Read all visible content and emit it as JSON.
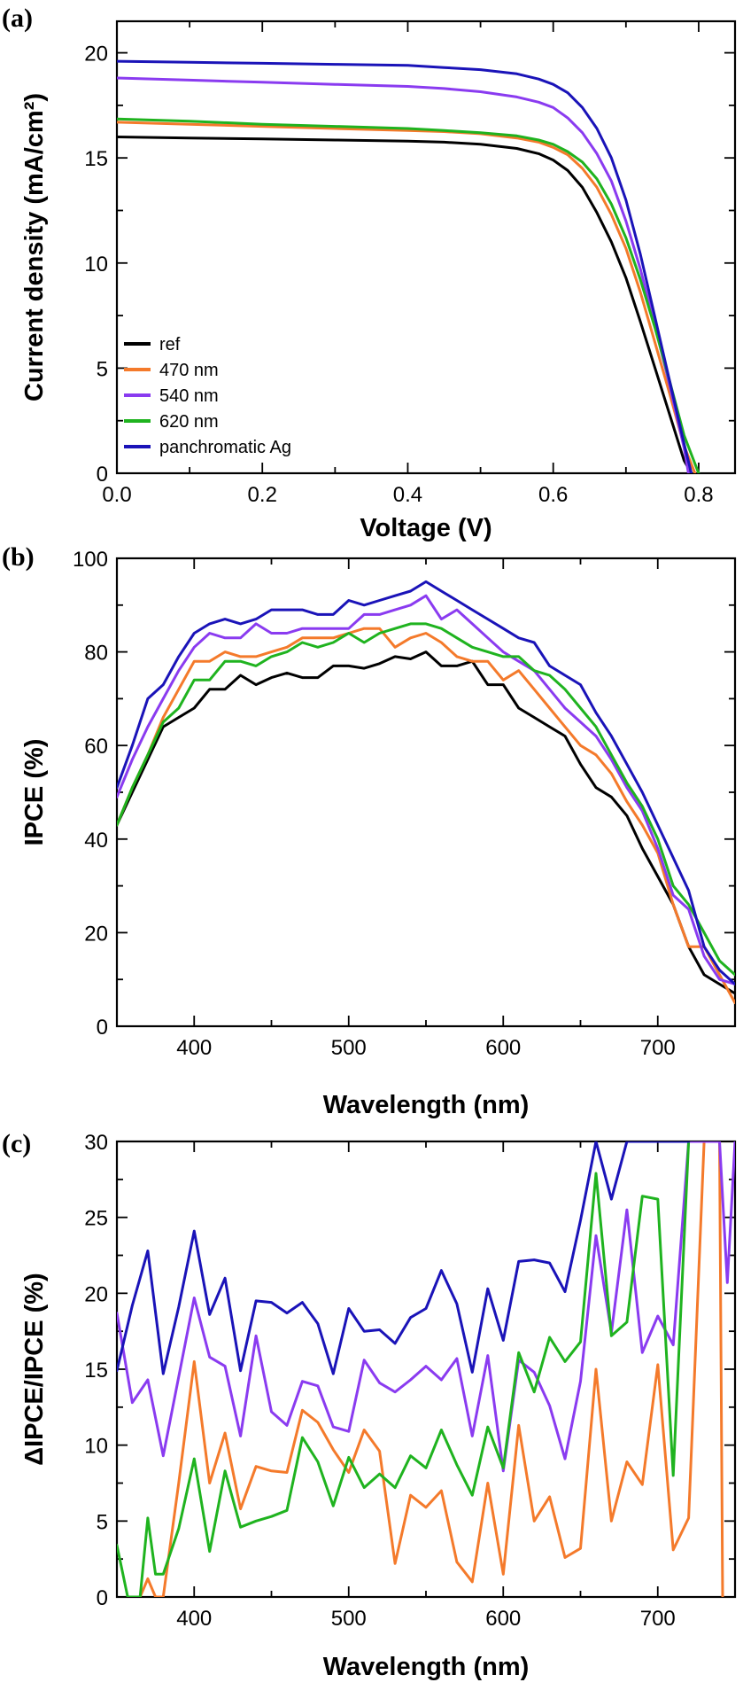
{
  "colors": {
    "ref": "#000000",
    "nm470": "#f47a2b",
    "nm540": "#8a3bf0",
    "nm620": "#1fb31f",
    "pan": "#1a13b8"
  },
  "chart_data": [
    {
      "panel": "(a)",
      "type": "line",
      "xlabel": "Voltage (V)",
      "ylabel": "Current density (mA/cm²)",
      "xlim": [
        0,
        0.85
      ],
      "ylim": [
        0,
        21.5
      ],
      "xticks": [
        "0.0",
        "0.2",
        "0.4",
        "0.6",
        "0.8"
      ],
      "xtick_values": [
        0,
        0.2,
        0.4,
        0.6,
        0.8
      ],
      "yticks": [
        "0",
        "5",
        "10",
        "15",
        "20"
      ],
      "ytick_values": [
        0,
        5,
        10,
        15,
        20
      ],
      "legend": "bottom-left",
      "series": [
        {
          "name": "ref",
          "color": "#000000",
          "x": [
            0,
            0.1,
            0.2,
            0.3,
            0.4,
            0.45,
            0.5,
            0.55,
            0.58,
            0.6,
            0.62,
            0.64,
            0.66,
            0.68,
            0.7,
            0.72,
            0.74,
            0.76,
            0.78,
            0.79
          ],
          "y": [
            16.0,
            15.95,
            15.9,
            15.85,
            15.8,
            15.75,
            15.65,
            15.45,
            15.2,
            14.9,
            14.4,
            13.6,
            12.4,
            11.0,
            9.3,
            7.2,
            5.0,
            2.8,
            0.6,
            0
          ]
        },
        {
          "name": "470 nm",
          "color": "#f47a2b",
          "x": [
            0,
            0.1,
            0.2,
            0.3,
            0.4,
            0.45,
            0.5,
            0.55,
            0.58,
            0.6,
            0.62,
            0.64,
            0.66,
            0.68,
            0.7,
            0.72,
            0.74,
            0.76,
            0.78,
            0.795
          ],
          "y": [
            16.7,
            16.6,
            16.5,
            16.4,
            16.3,
            16.25,
            16.15,
            15.95,
            15.75,
            15.5,
            15.15,
            14.5,
            13.6,
            12.3,
            10.7,
            8.6,
            6.2,
            3.8,
            1.3,
            0
          ]
        },
        {
          "name": "540 nm",
          "color": "#8a3bf0",
          "x": [
            0,
            0.1,
            0.2,
            0.3,
            0.4,
            0.45,
            0.5,
            0.55,
            0.58,
            0.6,
            0.62,
            0.64,
            0.66,
            0.68,
            0.7,
            0.72,
            0.74,
            0.76,
            0.78,
            0.786
          ],
          "y": [
            18.8,
            18.7,
            18.6,
            18.5,
            18.4,
            18.3,
            18.15,
            17.9,
            17.65,
            17.4,
            16.9,
            16.2,
            15.2,
            13.9,
            12.0,
            9.7,
            7.0,
            4.2,
            1.2,
            0
          ]
        },
        {
          "name": "620 nm",
          "color": "#1fb31f",
          "x": [
            0,
            0.1,
            0.2,
            0.3,
            0.4,
            0.45,
            0.5,
            0.55,
            0.58,
            0.6,
            0.62,
            0.64,
            0.66,
            0.68,
            0.7,
            0.72,
            0.74,
            0.76,
            0.78,
            0.8
          ],
          "y": [
            16.85,
            16.75,
            16.6,
            16.5,
            16.4,
            16.3,
            16.2,
            16.05,
            15.85,
            15.65,
            15.3,
            14.8,
            14.0,
            12.8,
            11.2,
            9.2,
            6.9,
            4.4,
            1.8,
            0
          ]
        },
        {
          "name": "panchromatic Ag",
          "color": "#1a13b8",
          "x": [
            0,
            0.1,
            0.2,
            0.3,
            0.4,
            0.45,
            0.5,
            0.55,
            0.58,
            0.6,
            0.62,
            0.64,
            0.66,
            0.68,
            0.7,
            0.72,
            0.74,
            0.76,
            0.78,
            0.79
          ],
          "y": [
            19.6,
            19.55,
            19.5,
            19.45,
            19.4,
            19.3,
            19.2,
            19.0,
            18.75,
            18.5,
            18.1,
            17.4,
            16.4,
            15.0,
            13.0,
            10.4,
            7.4,
            4.4,
            1.4,
            0
          ]
        }
      ]
    },
    {
      "panel": "(b)",
      "type": "line",
      "xlabel": "Wavelength (nm)",
      "ylabel": "IPCE (%)",
      "xlim": [
        350,
        750
      ],
      "ylim": [
        0,
        100
      ],
      "xticks": [
        "400",
        "500",
        "600",
        "700"
      ],
      "xtick_values": [
        400,
        500,
        600,
        700
      ],
      "yticks": [
        "0",
        "20",
        "40",
        "60",
        "80",
        "100"
      ],
      "ytick_values": [
        0,
        20,
        40,
        60,
        80,
        100
      ],
      "x": [
        350,
        360,
        370,
        380,
        390,
        400,
        410,
        420,
        430,
        440,
        450,
        460,
        470,
        480,
        490,
        500,
        510,
        520,
        530,
        540,
        550,
        560,
        570,
        580,
        590,
        600,
        610,
        620,
        630,
        640,
        650,
        660,
        670,
        680,
        690,
        700,
        710,
        720,
        730,
        740,
        750
      ],
      "series": [
        {
          "name": "ref",
          "color": "#000000",
          "values": [
            43,
            50,
            57,
            64,
            66,
            68,
            72,
            72,
            75,
            73,
            74.5,
            75.5,
            74.5,
            74.5,
            77,
            77,
            76.5,
            77.5,
            79,
            78.5,
            80,
            77,
            77,
            78,
            73,
            73,
            68,
            66,
            64,
            62,
            56,
            51,
            49,
            45,
            38,
            32,
            26,
            17,
            11,
            9,
            7
          ]
        },
        {
          "name": "470 nm",
          "color": "#f47a2b",
          "values": [
            43,
            51,
            58,
            66,
            72,
            78,
            78,
            80,
            79,
            79,
            80,
            81,
            83,
            83,
            83,
            84,
            85,
            85,
            81,
            83,
            84,
            82,
            79,
            78,
            78,
            74,
            76,
            72,
            68,
            64,
            60,
            58,
            54,
            48,
            43,
            37,
            26,
            17,
            17,
            11,
            5
          ]
        },
        {
          "name": "540 nm",
          "color": "#8a3bf0",
          "values": [
            49,
            57,
            64,
            70,
            76,
            81,
            84,
            83,
            83,
            86,
            84,
            84,
            85,
            85,
            85,
            85,
            88,
            88,
            89,
            90,
            92,
            87,
            89,
            86,
            83,
            80,
            78,
            76,
            72,
            68,
            65,
            62,
            57,
            51,
            46,
            38,
            28,
            25,
            15,
            10,
            9
          ]
        },
        {
          "name": "620 nm",
          "color": "#1fb31f",
          "values": [
            43,
            51,
            58,
            65,
            68,
            74,
            74,
            78,
            78,
            77,
            79,
            80,
            82,
            81,
            82,
            84,
            82,
            84,
            85,
            86,
            86,
            85,
            83,
            81,
            80,
            79,
            79,
            76,
            75,
            72,
            68,
            64,
            58,
            52,
            47,
            40,
            30,
            26,
            20,
            14,
            11
          ]
        },
        {
          "name": "panchromatic Ag",
          "color": "#1a13b8",
          "values": [
            51,
            60,
            70,
            73,
            79,
            84,
            86,
            87,
            86,
            87,
            89,
            89,
            89,
            88,
            88,
            91,
            90,
            91,
            92,
            93,
            95,
            93,
            91,
            89,
            87,
            85,
            83,
            82,
            77,
            75,
            73,
            67,
            62,
            56,
            50,
            43,
            36,
            29,
            17,
            12,
            9
          ]
        }
      ]
    },
    {
      "panel": "(c)",
      "type": "line",
      "xlabel": "Wavelength (nm)",
      "ylabel": "ΔIPCE/IPCE (%)",
      "xlim": [
        350,
        750
      ],
      "ylim": [
        0,
        30
      ],
      "xticks": [
        "400",
        "500",
        "600",
        "700"
      ],
      "xtick_values": [
        400,
        500,
        600,
        700
      ],
      "yticks": [
        "0",
        "5",
        "10",
        "15",
        "20",
        "25",
        "30"
      ],
      "ytick_values": [
        0,
        5,
        10,
        15,
        20,
        25,
        30
      ],
      "series": [
        {
          "name": "470 nm",
          "color": "#f47a2b",
          "x": [
            360,
            365,
            370,
            375,
            380,
            390,
            400,
            410,
            420,
            430,
            440,
            450,
            460,
            470,
            480,
            490,
            500,
            510,
            520,
            530,
            540,
            550,
            560,
            570,
            580,
            590,
            600,
            610,
            620,
            630,
            640,
            650,
            660,
            670,
            680,
            690,
            700,
            710,
            720,
            730,
            733,
            740,
            742
          ],
          "y": [
            0,
            0,
            1.2,
            0,
            0,
            7.5,
            15.5,
            7.5,
            10.8,
            5.8,
            8.6,
            8.3,
            8.2,
            12.3,
            11.5,
            9.7,
            8.2,
            11,
            9.6,
            2.2,
            6.7,
            5.9,
            7,
            2.3,
            1,
            7.5,
            1.5,
            11.3,
            5,
            6.6,
            2.6,
            3.2,
            15,
            5,
            8.9,
            7.4,
            15.3,
            3.1,
            5.2,
            30,
            30,
            30,
            0
          ]
        },
        {
          "name": "540 nm",
          "color": "#8a3bf0",
          "x": [
            350,
            360,
            370,
            380,
            390,
            400,
            410,
            420,
            430,
            440,
            450,
            460,
            470,
            480,
            490,
            500,
            510,
            520,
            530,
            540,
            550,
            560,
            570,
            580,
            590,
            600,
            610,
            620,
            630,
            640,
            650,
            660,
            670,
            680,
            690,
            700,
            710,
            720,
            740,
            745,
            750
          ],
          "y": [
            18.7,
            12.8,
            14.3,
            9.3,
            14.5,
            19.7,
            15.8,
            15.2,
            10.6,
            17.2,
            12.2,
            11.3,
            14.2,
            13.9,
            11.2,
            10.9,
            15.6,
            14.1,
            13.5,
            14.3,
            15.2,
            14.3,
            15.7,
            10.6,
            15.9,
            8.3,
            15.6,
            14.8,
            12.6,
            9.1,
            14.2,
            23.8,
            17.4,
            25.5,
            16.1,
            18.5,
            16.6,
            30,
            30,
            20.7,
            30
          ]
        },
        {
          "name": "620 nm",
          "color": "#1fb31f",
          "x": [
            350,
            357,
            360,
            365,
            370,
            375,
            380,
            390,
            400,
            410,
            420,
            430,
            440,
            450,
            460,
            470,
            480,
            490,
            500,
            510,
            520,
            530,
            540,
            550,
            560,
            570,
            580,
            590,
            600,
            610,
            620,
            630,
            640,
            650,
            660,
            670,
            680,
            690,
            700,
            710,
            720
          ],
          "y": [
            3.4,
            0,
            0,
            0,
            5.2,
            1.5,
            1.5,
            4.5,
            9.1,
            3,
            8.3,
            4.6,
            5,
            5.3,
            5.7,
            10.5,
            8.9,
            6,
            9.2,
            7.2,
            8.1,
            7.2,
            9.3,
            8.5,
            11,
            8.7,
            6.7,
            11.2,
            8.5,
            16.1,
            13.5,
            17.1,
            15.5,
            16.8,
            27.9,
            17.2,
            18.1,
            26.4,
            26.2,
            8,
            30
          ]
        },
        {
          "name": "panchromatic Ag",
          "color": "#1a13b8",
          "x": [
            350,
            360,
            370,
            380,
            390,
            400,
            410,
            420,
            430,
            440,
            450,
            460,
            470,
            480,
            490,
            500,
            510,
            520,
            530,
            540,
            550,
            560,
            570,
            580,
            590,
            600,
            610,
            620,
            630,
            640,
            650,
            660,
            670,
            680,
            690,
            700,
            710,
            720
          ],
          "y": [
            14.9,
            19.2,
            22.8,
            14.7,
            19.1,
            24.1,
            18.6,
            21,
            14.9,
            19.5,
            19.4,
            18.7,
            19.4,
            18,
            14.7,
            19,
            17.5,
            17.6,
            16.7,
            18.4,
            19,
            21.5,
            19.3,
            14.8,
            20.3,
            16.9,
            22.1,
            22.2,
            22,
            20.1,
            24.8,
            30,
            26.2,
            30,
            30,
            30,
            30,
            30
          ]
        }
      ]
    }
  ]
}
